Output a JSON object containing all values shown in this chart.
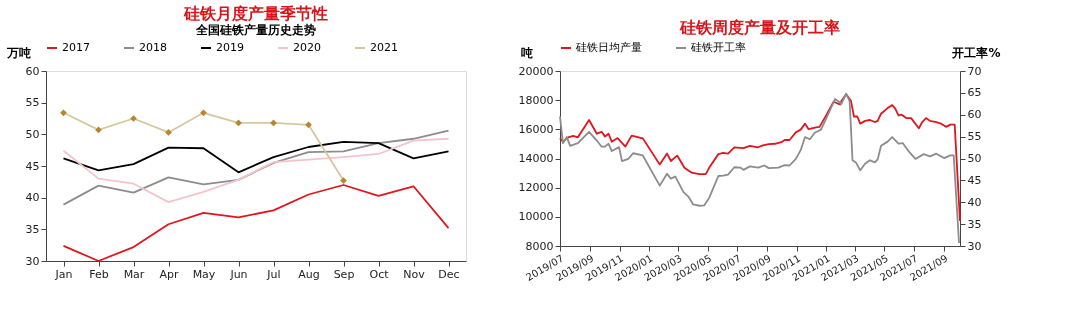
{
  "chart_data": [
    {
      "type": "line",
      "title": "硅铁月度产量季节性",
      "subtitle": "全国硅铁产量历史走势",
      "ylabel": "万吨",
      "categories": [
        "Jan",
        "Feb",
        "Mar",
        "Apr",
        "May",
        "Jun",
        "Jul",
        "Aug",
        "Sep",
        "Oct",
        "Nov",
        "Dec"
      ],
      "ylim": [
        30,
        60
      ],
      "yticks": [
        30,
        35,
        40,
        45,
        50,
        55,
        60
      ],
      "grid": false,
      "legend": "top",
      "series": [
        {
          "name": "2017",
          "color": "#e0161e",
          "values": [
            32.4,
            30.0,
            32.2,
            35.8,
            37.6,
            36.9,
            38.0,
            40.5,
            42.0,
            40.3,
            41.8,
            35.2
          ]
        },
        {
          "name": "2018",
          "color": "#8c8c8c",
          "values": [
            38.9,
            41.9,
            40.8,
            43.2,
            42.1,
            42.8,
            45.5,
            47.2,
            47.3,
            48.6,
            49.3,
            50.6
          ]
        },
        {
          "name": "2019",
          "color": "#000000",
          "values": [
            46.2,
            44.3,
            45.3,
            47.9,
            47.8,
            44.0,
            46.4,
            48.0,
            48.8,
            48.6,
            46.2,
            47.3
          ]
        },
        {
          "name": "2020",
          "color": "#f5c4ca",
          "values": [
            47.4,
            43.0,
            42.2,
            39.3,
            40.9,
            42.8,
            45.6,
            46.0,
            46.4,
            46.9,
            49.0,
            49.3
          ]
        },
        {
          "name": "2021",
          "color": "#d6c7a0",
          "marker": "diamond",
          "values": [
            53.4,
            50.7,
            52.5,
            50.3,
            53.4,
            51.8,
            51.8,
            51.5,
            42.7,
            null,
            null,
            null
          ]
        }
      ]
    },
    {
      "type": "line",
      "title": "硅铁周度产量及开工率",
      "ylabel": "吨",
      "y2label": "开工率%",
      "xlim": [
        "2019-07-01",
        "2021-10-04"
      ],
      "xticks": [
        {
          "value": "2019-07-01",
          "label": "2019/07"
        },
        {
          "value": "2019-09-01",
          "label": "2019/09"
        },
        {
          "value": "2019-11-01",
          "label": "2019/11"
        },
        {
          "value": "2020-01-01",
          "label": "2020/01"
        },
        {
          "value": "2020-03-01",
          "label": "2020/03"
        },
        {
          "value": "2020-05-01",
          "label": "2020/05"
        },
        {
          "value": "2020-07-01",
          "label": "2020/07"
        },
        {
          "value": "2020-09-01",
          "label": "2020/09"
        },
        {
          "value": "2020-11-01",
          "label": "2020/11"
        },
        {
          "value": "2021-01-01",
          "label": "2021/01"
        },
        {
          "value": "2021-03-01",
          "label": "2021/03"
        },
        {
          "value": "2021-05-01",
          "label": "2021/05"
        },
        {
          "value": "2021-07-01",
          "label": "2021/07"
        },
        {
          "value": "2021-09-01",
          "label": "2021/09"
        }
      ],
      "ylim": [
        8000,
        20000
      ],
      "yticks": [
        8000,
        10000,
        12000,
        14000,
        16000,
        18000,
        20000
      ],
      "y2lim": [
        30,
        70
      ],
      "y2ticks": [
        30,
        35,
        40,
        45,
        50,
        55,
        60,
        65,
        70
      ],
      "grid": false,
      "legend": "top",
      "series": [
        {
          "name": "硅铁日均产量",
          "color": "#e0161e",
          "x": [
            "2019-07-01",
            "2019-07-07",
            "2019-07-18",
            "2019-07-28",
            "2019-08-07",
            "2019-08-30",
            "2019-09-15",
            "2019-09-25",
            "2019-10-02",
            "2019-10-09",
            "2019-10-16",
            "2019-10-28",
            "2019-11-13",
            "2019-11-26",
            "2019-12-19",
            "2020-01-23",
            "2020-02-07",
            "2020-02-15",
            "2020-02-28",
            "2020-03-14",
            "2020-03-29",
            "2020-04-14",
            "2020-04-27",
            "2020-05-04",
            "2020-05-23",
            "2020-06-02",
            "2020-06-12",
            "2020-06-25",
            "2020-07-14",
            "2020-07-27",
            "2020-08-13",
            "2020-08-23",
            "2020-09-04",
            "2020-09-17",
            "2020-09-30",
            "2020-10-07",
            "2020-10-17",
            "2020-10-30",
            "2020-11-09",
            "2020-11-18",
            "2020-11-25",
            "2020-12-11",
            "2020-12-18",
            "2020-12-31",
            "2021-01-16",
            "2021-01-29",
            "2021-02-01",
            "2021-02-11",
            "2021-02-21",
            "2021-02-27",
            "2021-03-06",
            "2021-03-12",
            "2021-03-22",
            "2021-04-01",
            "2021-04-11",
            "2021-04-17",
            "2021-04-24",
            "2021-05-07",
            "2021-05-17",
            "2021-05-23",
            "2021-05-30",
            "2021-06-05",
            "2021-06-15",
            "2021-06-25",
            "2021-07-11",
            "2021-07-18",
            "2021-07-26",
            "2021-08-03",
            "2021-08-16",
            "2021-08-26",
            "2021-09-05",
            "2021-09-14",
            "2021-09-23",
            "2021-10-04"
          ],
          "values": [
            15400,
            15150,
            15450,
            15550,
            15450,
            16640,
            15700,
            15830,
            15500,
            15700,
            15150,
            15400,
            14820,
            15570,
            15380,
            13590,
            14340,
            13830,
            14200,
            13360,
            13030,
            12930,
            12930,
            13360,
            14300,
            14390,
            14340,
            14770,
            14710,
            14860,
            14770,
            14900,
            14990,
            15010,
            15120,
            15270,
            15270,
            15790,
            15980,
            16390,
            16020,
            16130,
            16170,
            16920,
            17890,
            17700,
            17940,
            18410,
            17940,
            16880,
            16880,
            16390,
            16580,
            16640,
            16500,
            16580,
            17070,
            17440,
            17660,
            17440,
            16950,
            17010,
            16770,
            16770,
            16070,
            16500,
            16770,
            16580,
            16500,
            16390,
            16170,
            16320,
            16320,
            9720
          ]
        },
        {
          "name": "硅铁开工率",
          "color": "#8c8c8c",
          "axis": "y2",
          "x": [
            "2019-07-01",
            "2019-07-07",
            "2019-07-15",
            "2019-07-22",
            "2019-08-07",
            "2019-08-30",
            "2019-09-15",
            "2019-09-25",
            "2019-10-02",
            "2019-10-09",
            "2019-10-16",
            "2019-10-31",
            "2019-11-06",
            "2019-11-19",
            "2019-11-29",
            "2019-12-19",
            "2020-01-23",
            "2020-02-07",
            "2020-02-15",
            "2020-02-24",
            "2020-03-12",
            "2020-03-22",
            "2020-04-01",
            "2020-04-14",
            "2020-04-24",
            "2020-05-04",
            "2020-05-23",
            "2020-06-02",
            "2020-06-12",
            "2020-06-25",
            "2020-07-08",
            "2020-07-14",
            "2020-07-27",
            "2020-08-13",
            "2020-08-26",
            "2020-09-04",
            "2020-09-24",
            "2020-10-07",
            "2020-10-17",
            "2020-10-30",
            "2020-11-09",
            "2020-11-18",
            "2020-11-28",
            "2020-12-08",
            "2020-12-21",
            "2021-01-03",
            "2021-01-19",
            "2021-02-01",
            "2021-02-11",
            "2021-02-18",
            "2021-02-21",
            "2021-02-24",
            "2021-03-03",
            "2021-03-12",
            "2021-03-22",
            "2021-04-01",
            "2021-04-11",
            "2021-04-17",
            "2021-04-24",
            "2021-05-07",
            "2021-05-17",
            "2021-05-30",
            "2021-06-08",
            "2021-06-21",
            "2021-07-04",
            "2021-07-21",
            "2021-08-03",
            "2021-08-16",
            "2021-09-01",
            "2021-09-14",
            "2021-09-21",
            "2021-10-02"
          ],
          "values": [
            59.6,
            53.5,
            54.9,
            52.9,
            53.5,
            56.1,
            54.1,
            52.7,
            52.7,
            53.4,
            51.7,
            52.6,
            49.4,
            49.9,
            51.2,
            50.7,
            43.8,
            46.5,
            45.4,
            45.9,
            42.3,
            41.3,
            39.5,
            39.2,
            39.3,
            41.0,
            46.0,
            46.1,
            46.3,
            48.0,
            47.9,
            47.4,
            48.2,
            47.9,
            48.4,
            47.8,
            47.9,
            48.5,
            48.4,
            49.9,
            51.9,
            54.9,
            54.4,
            55.9,
            56.6,
            59.7,
            63.6,
            62.5,
            64.8,
            63.1,
            56.6,
            49.6,
            49.1,
            47.3,
            48.8,
            49.6,
            49.1,
            49.8,
            52.9,
            53.8,
            54.9,
            53.4,
            53.5,
            51.5,
            49.9,
            51.0,
            50.5,
            51.1,
            50.1,
            50.7,
            50.7,
            30.7
          ]
        }
      ]
    }
  ]
}
